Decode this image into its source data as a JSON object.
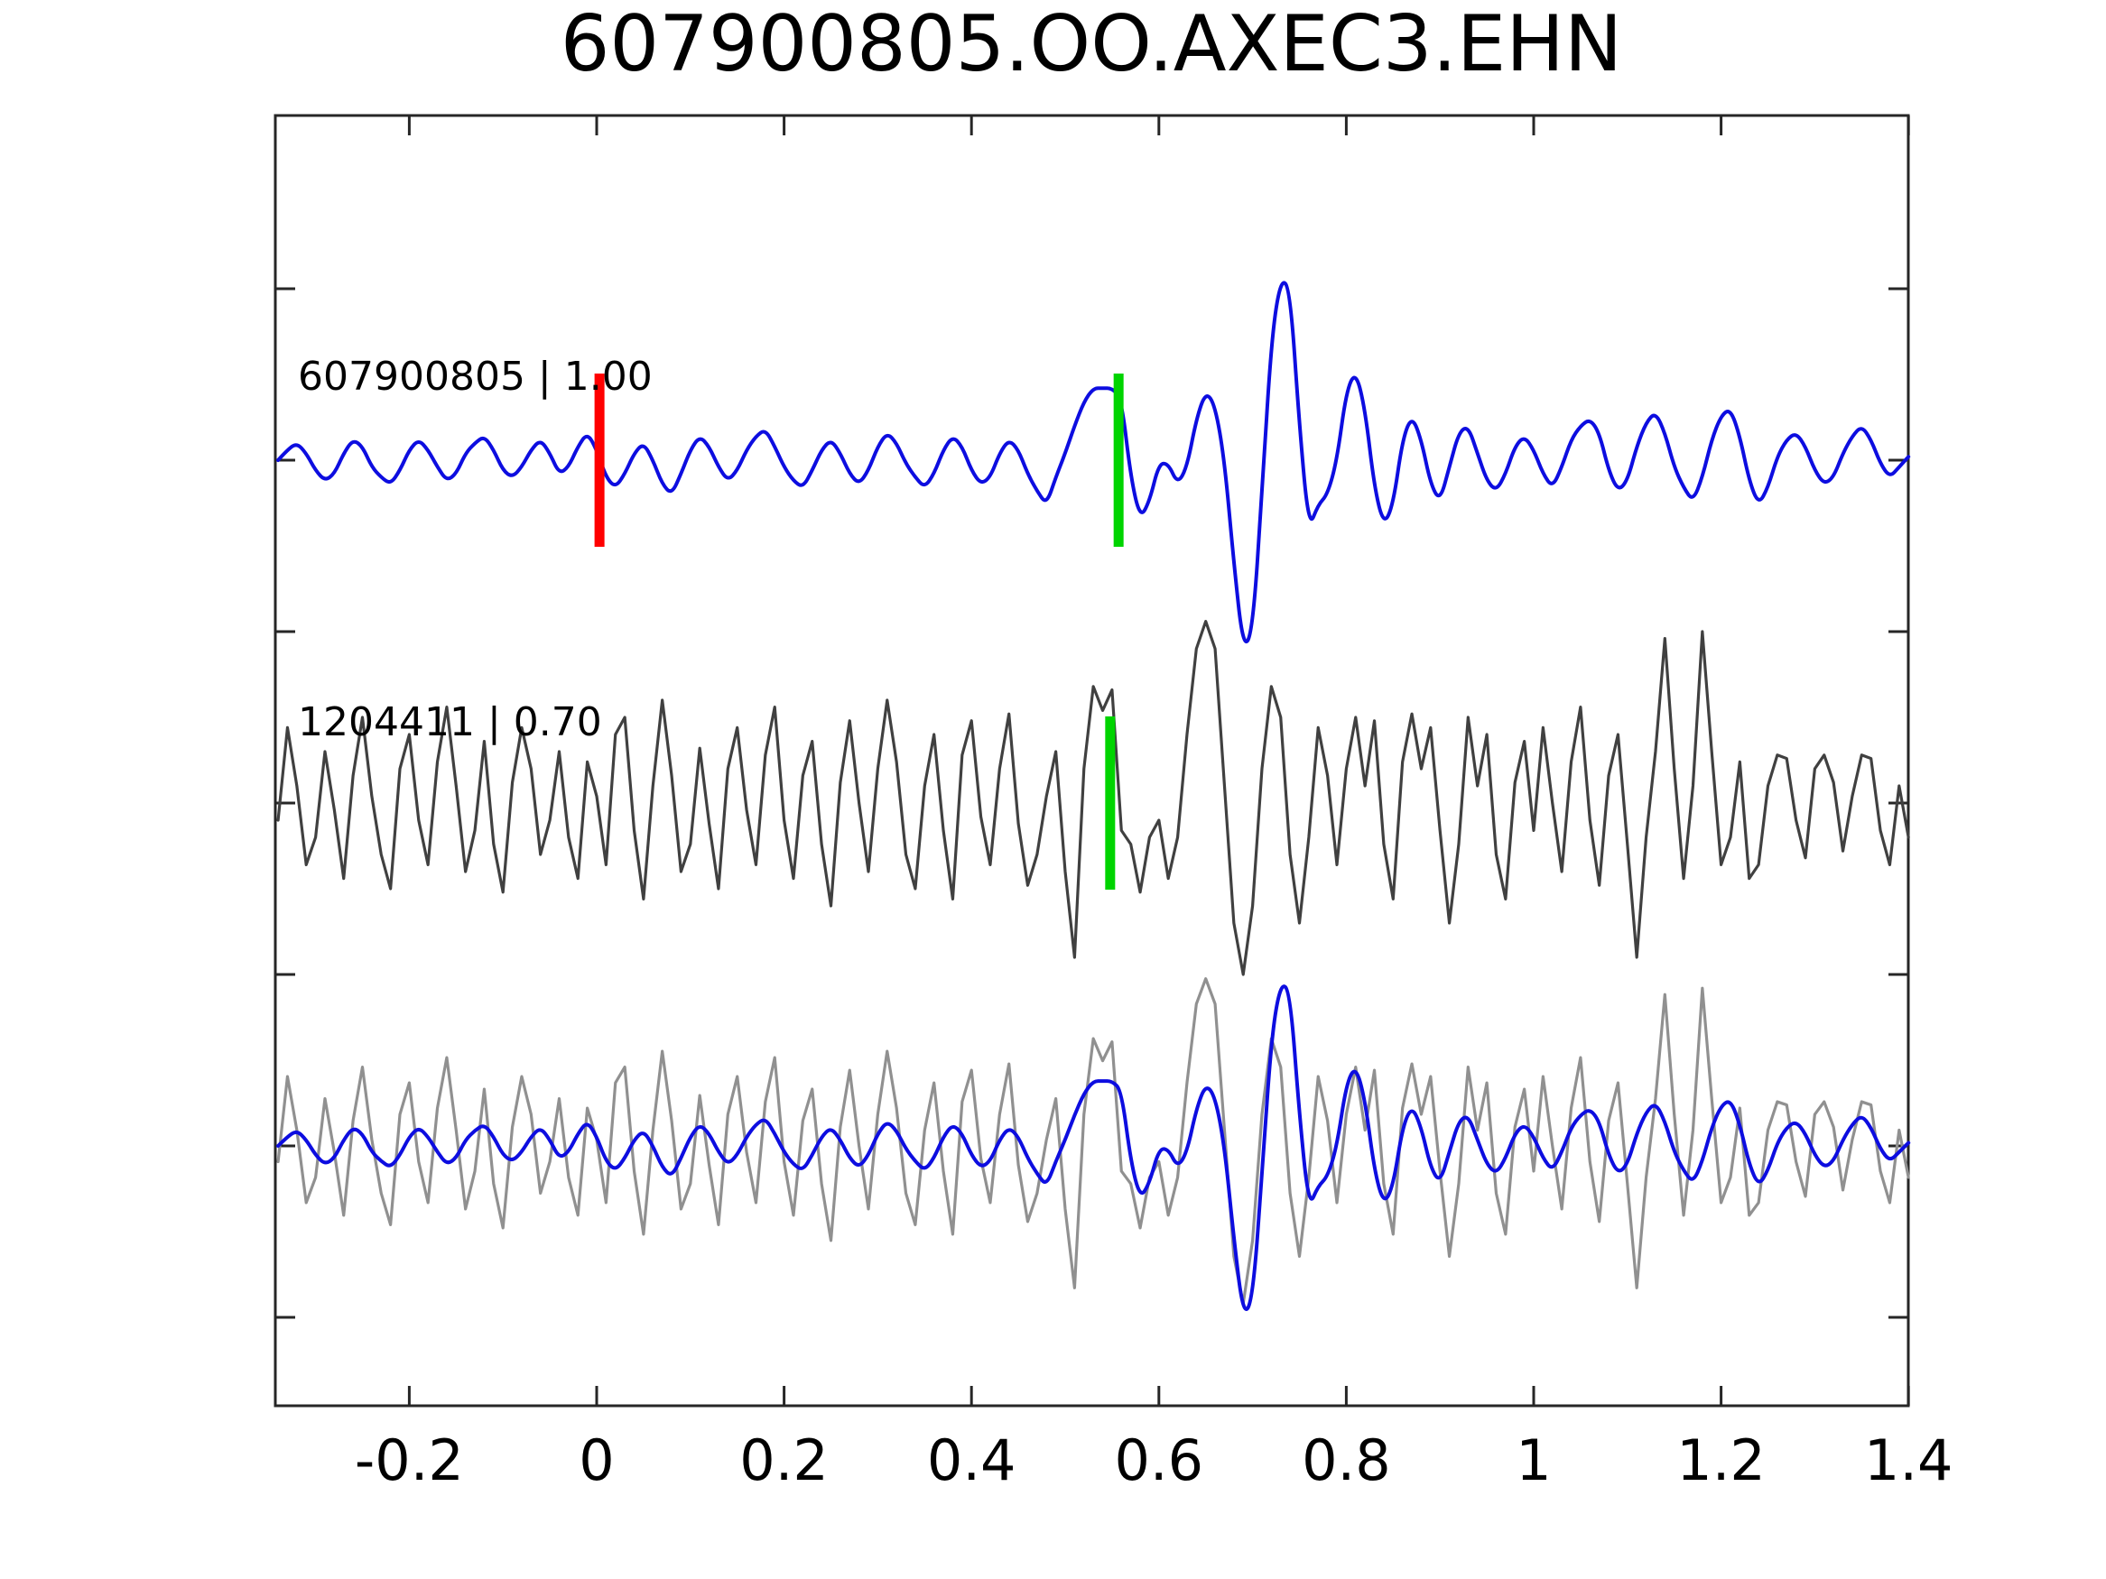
{
  "figure": {
    "title": "607900805.OO.AXEC3.EHN"
  },
  "colors": {
    "detection_blue": "#0d0de0",
    "template_dark_gray": "#404040",
    "overlay_light_gray": "#909090",
    "origin_marker_red": "#ff0000",
    "pick_marker_green": "#00d400",
    "frame": "#262626",
    "text": "#000000",
    "background": "#ffffff"
  },
  "chart_data": {
    "type": "line",
    "title": "607900805.OO.AXEC3.EHN",
    "xlabel": "",
    "ylabel": "",
    "xlim": [
      -0.342,
      1.405
    ],
    "grid": false,
    "legend": "none",
    "layout_note": "three vertically offset seismogram panels sharing one x axis; panel 3 overlays both series",
    "xticks": {
      "values": [
        -0.2,
        0,
        0.2,
        0.4,
        0.6,
        0.8,
        1,
        1.2,
        1.4
      ],
      "labels": [
        "-0.2",
        "0",
        "0.2",
        "0.4",
        "0.6",
        "0.8",
        "1",
        "1.2",
        "1.4"
      ]
    },
    "x_start": -0.34,
    "dx": 0.01,
    "series": [
      {
        "name": "detection",
        "id": "607900805",
        "correlation": "1.00",
        "color_key": "detection_blue",
        "smooth": true,
        "values": [
          0.0,
          0.03,
          0.05,
          0.02,
          -0.03,
          -0.06,
          -0.04,
          0.02,
          0.06,
          0.04,
          -0.02,
          -0.05,
          -0.07,
          -0.03,
          0.03,
          0.06,
          0.03,
          -0.02,
          -0.06,
          -0.04,
          0.02,
          0.05,
          0.07,
          0.03,
          -0.03,
          -0.05,
          -0.02,
          0.03,
          0.06,
          0.02,
          -0.04,
          -0.02,
          0.04,
          0.08,
          0.03,
          -0.05,
          -0.08,
          -0.04,
          0.02,
          0.05,
          0.0,
          -0.07,
          -0.1,
          -0.04,
          0.03,
          0.07,
          0.04,
          -0.02,
          -0.06,
          -0.03,
          0.03,
          0.07,
          0.09,
          0.04,
          -0.02,
          -0.06,
          -0.08,
          -0.03,
          0.03,
          0.06,
          0.02,
          -0.04,
          -0.07,
          -0.03,
          0.04,
          0.08,
          0.05,
          -0.01,
          -0.05,
          -0.08,
          -0.04,
          0.03,
          0.07,
          0.04,
          -0.03,
          -0.07,
          -0.05,
          0.02,
          0.06,
          0.03,
          -0.04,
          -0.09,
          -0.13,
          -0.05,
          0.02,
          0.1,
          0.17,
          0.21,
          0.21,
          0.21,
          0.18,
          -0.05,
          -0.17,
          -0.12,
          -0.01,
          -0.01,
          -0.07,
          -0.02,
          0.12,
          0.2,
          0.16,
          0.0,
          -0.3,
          -0.55,
          -0.5,
          -0.1,
          0.35,
          0.53,
          0.5,
          0.1,
          -0.2,
          -0.13,
          -0.1,
          0.0,
          0.2,
          0.26,
          0.15,
          -0.08,
          -0.19,
          -0.13,
          0.06,
          0.13,
          0.06,
          -0.07,
          -0.12,
          -0.02,
          0.08,
          0.1,
          0.02,
          -0.06,
          -0.09,
          -0.04,
          0.04,
          0.07,
          0.03,
          -0.04,
          -0.08,
          -0.02,
          0.06,
          0.1,
          0.12,
          0.08,
          -0.03,
          -0.09,
          -0.06,
          0.04,
          0.11,
          0.14,
          0.08,
          -0.02,
          -0.08,
          -0.12,
          -0.05,
          0.06,
          0.13,
          0.15,
          0.07,
          -0.06,
          -0.13,
          -0.08,
          0.01,
          0.06,
          0.08,
          0.04,
          -0.03,
          -0.07,
          -0.05,
          0.02,
          0.07,
          0.1,
          0.06,
          -0.01,
          -0.05,
          -0.02,
          0.01
        ]
      },
      {
        "name": "template",
        "id": "1204411",
        "correlation": "0.70",
        "color_key": "template_dark_gray",
        "smooth": false,
        "values": [
          -0.05,
          0.22,
          0.05,
          -0.18,
          -0.1,
          0.15,
          -0.02,
          -0.22,
          0.08,
          0.25,
          0.02,
          -0.15,
          -0.25,
          0.1,
          0.2,
          -0.05,
          -0.18,
          0.12,
          0.28,
          0.05,
          -0.2,
          -0.08,
          0.18,
          -0.12,
          -0.26,
          0.06,
          0.22,
          0.1,
          -0.15,
          -0.05,
          0.15,
          -0.1,
          -0.22,
          0.12,
          0.02,
          -0.18,
          0.2,
          0.25,
          -0.08,
          -0.28,
          0.05,
          0.3,
          0.08,
          -0.2,
          -0.12,
          0.16,
          -0.06,
          -0.25,
          0.1,
          0.22,
          -0.02,
          -0.18,
          0.14,
          0.28,
          -0.05,
          -0.22,
          0.08,
          0.18,
          -0.12,
          -0.3,
          0.06,
          0.24,
          0.0,
          -0.2,
          0.1,
          0.3,
          0.12,
          -0.15,
          -0.25,
          0.05,
          0.2,
          -0.08,
          -0.28,
          0.14,
          0.24,
          -0.04,
          -0.18,
          0.1,
          0.26,
          -0.06,
          -0.24,
          -0.15,
          0.02,
          0.15,
          -0.2,
          -0.45,
          0.1,
          0.34,
          0.27,
          0.33,
          -0.08,
          -0.12,
          -0.26,
          -0.1,
          -0.05,
          -0.22,
          -0.1,
          0.2,
          0.45,
          0.53,
          0.45,
          0.05,
          -0.35,
          -0.5,
          -0.3,
          0.1,
          0.34,
          0.25,
          -0.15,
          -0.35,
          -0.1,
          0.22,
          0.08,
          -0.18,
          0.1,
          0.25,
          0.05,
          0.24,
          -0.12,
          -0.28,
          0.12,
          0.26,
          0.1,
          0.22,
          -0.08,
          -0.35,
          -0.12,
          0.25,
          0.05,
          0.2,
          -0.15,
          -0.28,
          0.06,
          0.18,
          -0.08,
          0.22,
          0.0,
          -0.2,
          0.12,
          0.28,
          -0.05,
          -0.24,
          0.08,
          0.2,
          -0.12,
          -0.45,
          -0.1,
          0.15,
          0.48,
          0.1,
          -0.22,
          0.05,
          0.5,
          0.15,
          -0.18,
          -0.1,
          0.12,
          -0.22,
          -0.18,
          0.05,
          0.14,
          0.13,
          -0.05,
          -0.16,
          0.1,
          0.14,
          0.06,
          -0.14,
          0.02,
          0.14,
          0.13,
          -0.08,
          -0.18,
          0.05,
          -0.1
        ]
      }
    ],
    "panels": [
      {
        "label": "607900805 | 1.00",
        "traces": [
          {
            "series": 0,
            "scale": 1,
            "color_key": "detection_blue"
          }
        ],
        "markers": [
          {
            "x": 0.003,
            "color_key": "origin_marker_red",
            "name": "origin-time-marker"
          },
          {
            "x": 0.557,
            "color_key": "pick_marker_green",
            "name": "pick-marker-detection"
          }
        ]
      },
      {
        "label": "1204411 | 0.70",
        "traces": [
          {
            "series": 1,
            "scale": 1,
            "color_key": "template_dark_gray"
          }
        ],
        "markers": [
          {
            "x": 0.548,
            "color_key": "pick_marker_green",
            "name": "pick-marker-template"
          }
        ]
      },
      {
        "label": "",
        "traces": [
          {
            "series": 1,
            "scale": 0.92,
            "color_key": "overlay_light_gray"
          },
          {
            "series": 0,
            "scale": 0.9,
            "color_key": "detection_blue"
          }
        ],
        "markers": []
      }
    ]
  }
}
